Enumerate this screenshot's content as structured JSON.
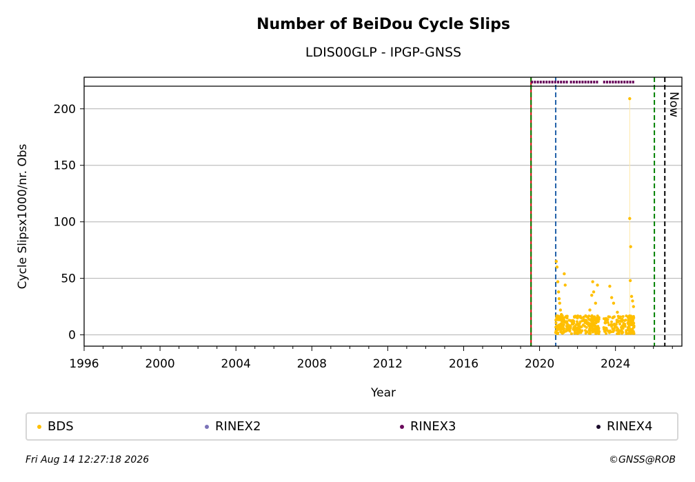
{
  "chart_data": {
    "type": "scatter",
    "title": "Number of BeiDou Cycle Slips",
    "subtitle": "LDIS00GLP - IPGP-GNSS",
    "xlabel": "Year",
    "ylabel": "Cycle Slipsx1000/nr. Obs",
    "xlim": [
      1996,
      2027.5
    ],
    "ylim": [
      -10,
      220
    ],
    "x_ticks": [
      "1996",
      "2000",
      "2004",
      "2008",
      "2012",
      "2016",
      "2020",
      "2024"
    ],
    "y_ticks": [
      "0",
      "50",
      "100",
      "150",
      "200"
    ],
    "grid": "horizontal",
    "legend_position": "bottom",
    "vertical_lines": [
      {
        "x": 2019.55,
        "color": "#cc0000",
        "style": "solid"
      },
      {
        "x": 2019.55,
        "color": "#008000",
        "style": "dashed"
      },
      {
        "x": 2020.85,
        "color": "#1f5fa8",
        "style": "dashed"
      },
      {
        "x": 2026.05,
        "color": "#008000",
        "style": "dashed"
      },
      {
        "x": 2026.6,
        "color": "#000000",
        "style": "dashed"
      }
    ],
    "now_label": "Now",
    "rinex3_availability": [
      [
        2019.55,
        2021.5
      ],
      [
        2021.6,
        2023.1
      ],
      [
        2023.35,
        2025.0
      ]
    ],
    "series": [
      {
        "name": "BDS",
        "color": "#ffbf00",
        "points": [
          [
            2020.85,
            2
          ],
          [
            2020.88,
            65
          ],
          [
            2020.92,
            60
          ],
          [
            2020.96,
            47
          ],
          [
            2021.0,
            38
          ],
          [
            2021.03,
            32
          ],
          [
            2021.06,
            28
          ],
          [
            2021.1,
            22
          ],
          [
            2021.15,
            18
          ],
          [
            2021.2,
            12
          ],
          [
            2021.3,
            54
          ],
          [
            2021.35,
            44
          ],
          [
            2021.45,
            10
          ],
          [
            2021.6,
            8
          ],
          [
            2021.8,
            12
          ],
          [
            2022.0,
            6
          ],
          [
            2022.2,
            15
          ],
          [
            2022.5,
            10
          ],
          [
            2022.65,
            22
          ],
          [
            2022.75,
            35
          ],
          [
            2022.8,
            47
          ],
          [
            2022.85,
            38
          ],
          [
            2022.95,
            28
          ],
          [
            2023.05,
            44
          ],
          [
            2023.4,
            5
          ],
          [
            2023.7,
            43
          ],
          [
            2023.8,
            33
          ],
          [
            2023.9,
            28
          ],
          [
            2024.1,
            20
          ],
          [
            2024.3,
            12
          ],
          [
            2024.5,
            8
          ],
          [
            2024.75,
            209
          ],
          [
            2024.75,
            103
          ],
          [
            2024.8,
            78
          ],
          [
            2024.78,
            48
          ],
          [
            2024.85,
            34
          ],
          [
            2024.9,
            30
          ],
          [
            2024.95,
            25
          ]
        ]
      },
      {
        "name": "RINEX2",
        "color": "#7b73b8",
        "points": []
      },
      {
        "name": "RINEX3",
        "color": "#6a0a5c",
        "points": []
      },
      {
        "name": "RINEX4",
        "color": "#1a0a2a",
        "points": []
      }
    ]
  },
  "footer": {
    "timestamp": "Fri Aug 14 12:27:18 2026",
    "copyright": "©GNSS@ROB"
  }
}
